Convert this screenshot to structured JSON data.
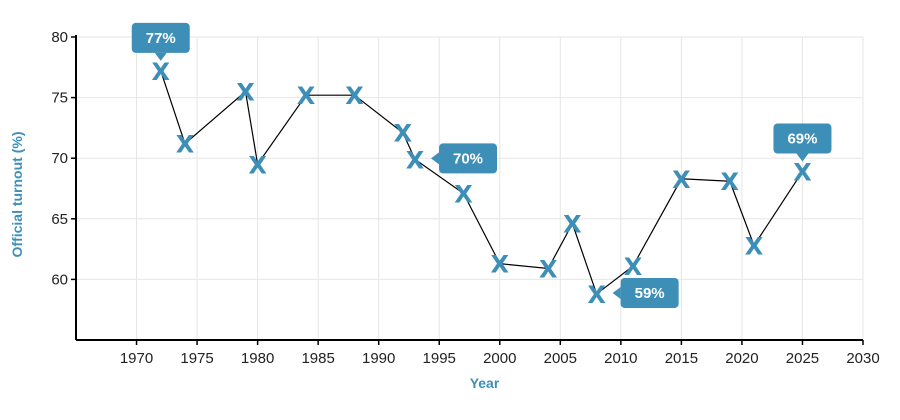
{
  "chart_data": {
    "type": "line",
    "xlabel": "Year",
    "ylabel": "Official turnout (%)",
    "xlim": [
      1965,
      2030
    ],
    "ylim": [
      55,
      80
    ],
    "xticks": [
      1970,
      1975,
      1980,
      1985,
      1990,
      1995,
      2000,
      2005,
      2010,
      2015,
      2020,
      2025,
      2030
    ],
    "yticks": [
      60,
      65,
      70,
      75,
      80
    ],
    "grid": true,
    "marker": "X",
    "colors": {
      "marker": "#3d8fb8",
      "line": "#000000",
      "callout": "#3d8fb8",
      "grid": "#e6e6e6"
    },
    "series": [
      {
        "x": [
          1972,
          1974,
          1979,
          1980,
          1984,
          1988,
          1992,
          1993,
          1997,
          2000,
          2004,
          2006,
          2008,
          2011,
          2015,
          2019,
          2021,
          2025
        ],
        "values": [
          77.2,
          71.2,
          75.5,
          69.5,
          75.2,
          75.2,
          72.1,
          69.9,
          67.1,
          61.3,
          60.9,
          64.6,
          58.8,
          61.1,
          68.3,
          68.1,
          62.8,
          68.9
        ]
      }
    ],
    "annotations": [
      {
        "text": "77%",
        "x": 1972,
        "y": 77.2,
        "placement": "above"
      },
      {
        "text": "70%",
        "x": 1993,
        "y": 69.9,
        "placement": "right"
      },
      {
        "text": "59%",
        "x": 2008,
        "y": 58.8,
        "placement": "right"
      },
      {
        "text": "69%",
        "x": 2025,
        "y": 68.9,
        "placement": "above"
      }
    ]
  }
}
